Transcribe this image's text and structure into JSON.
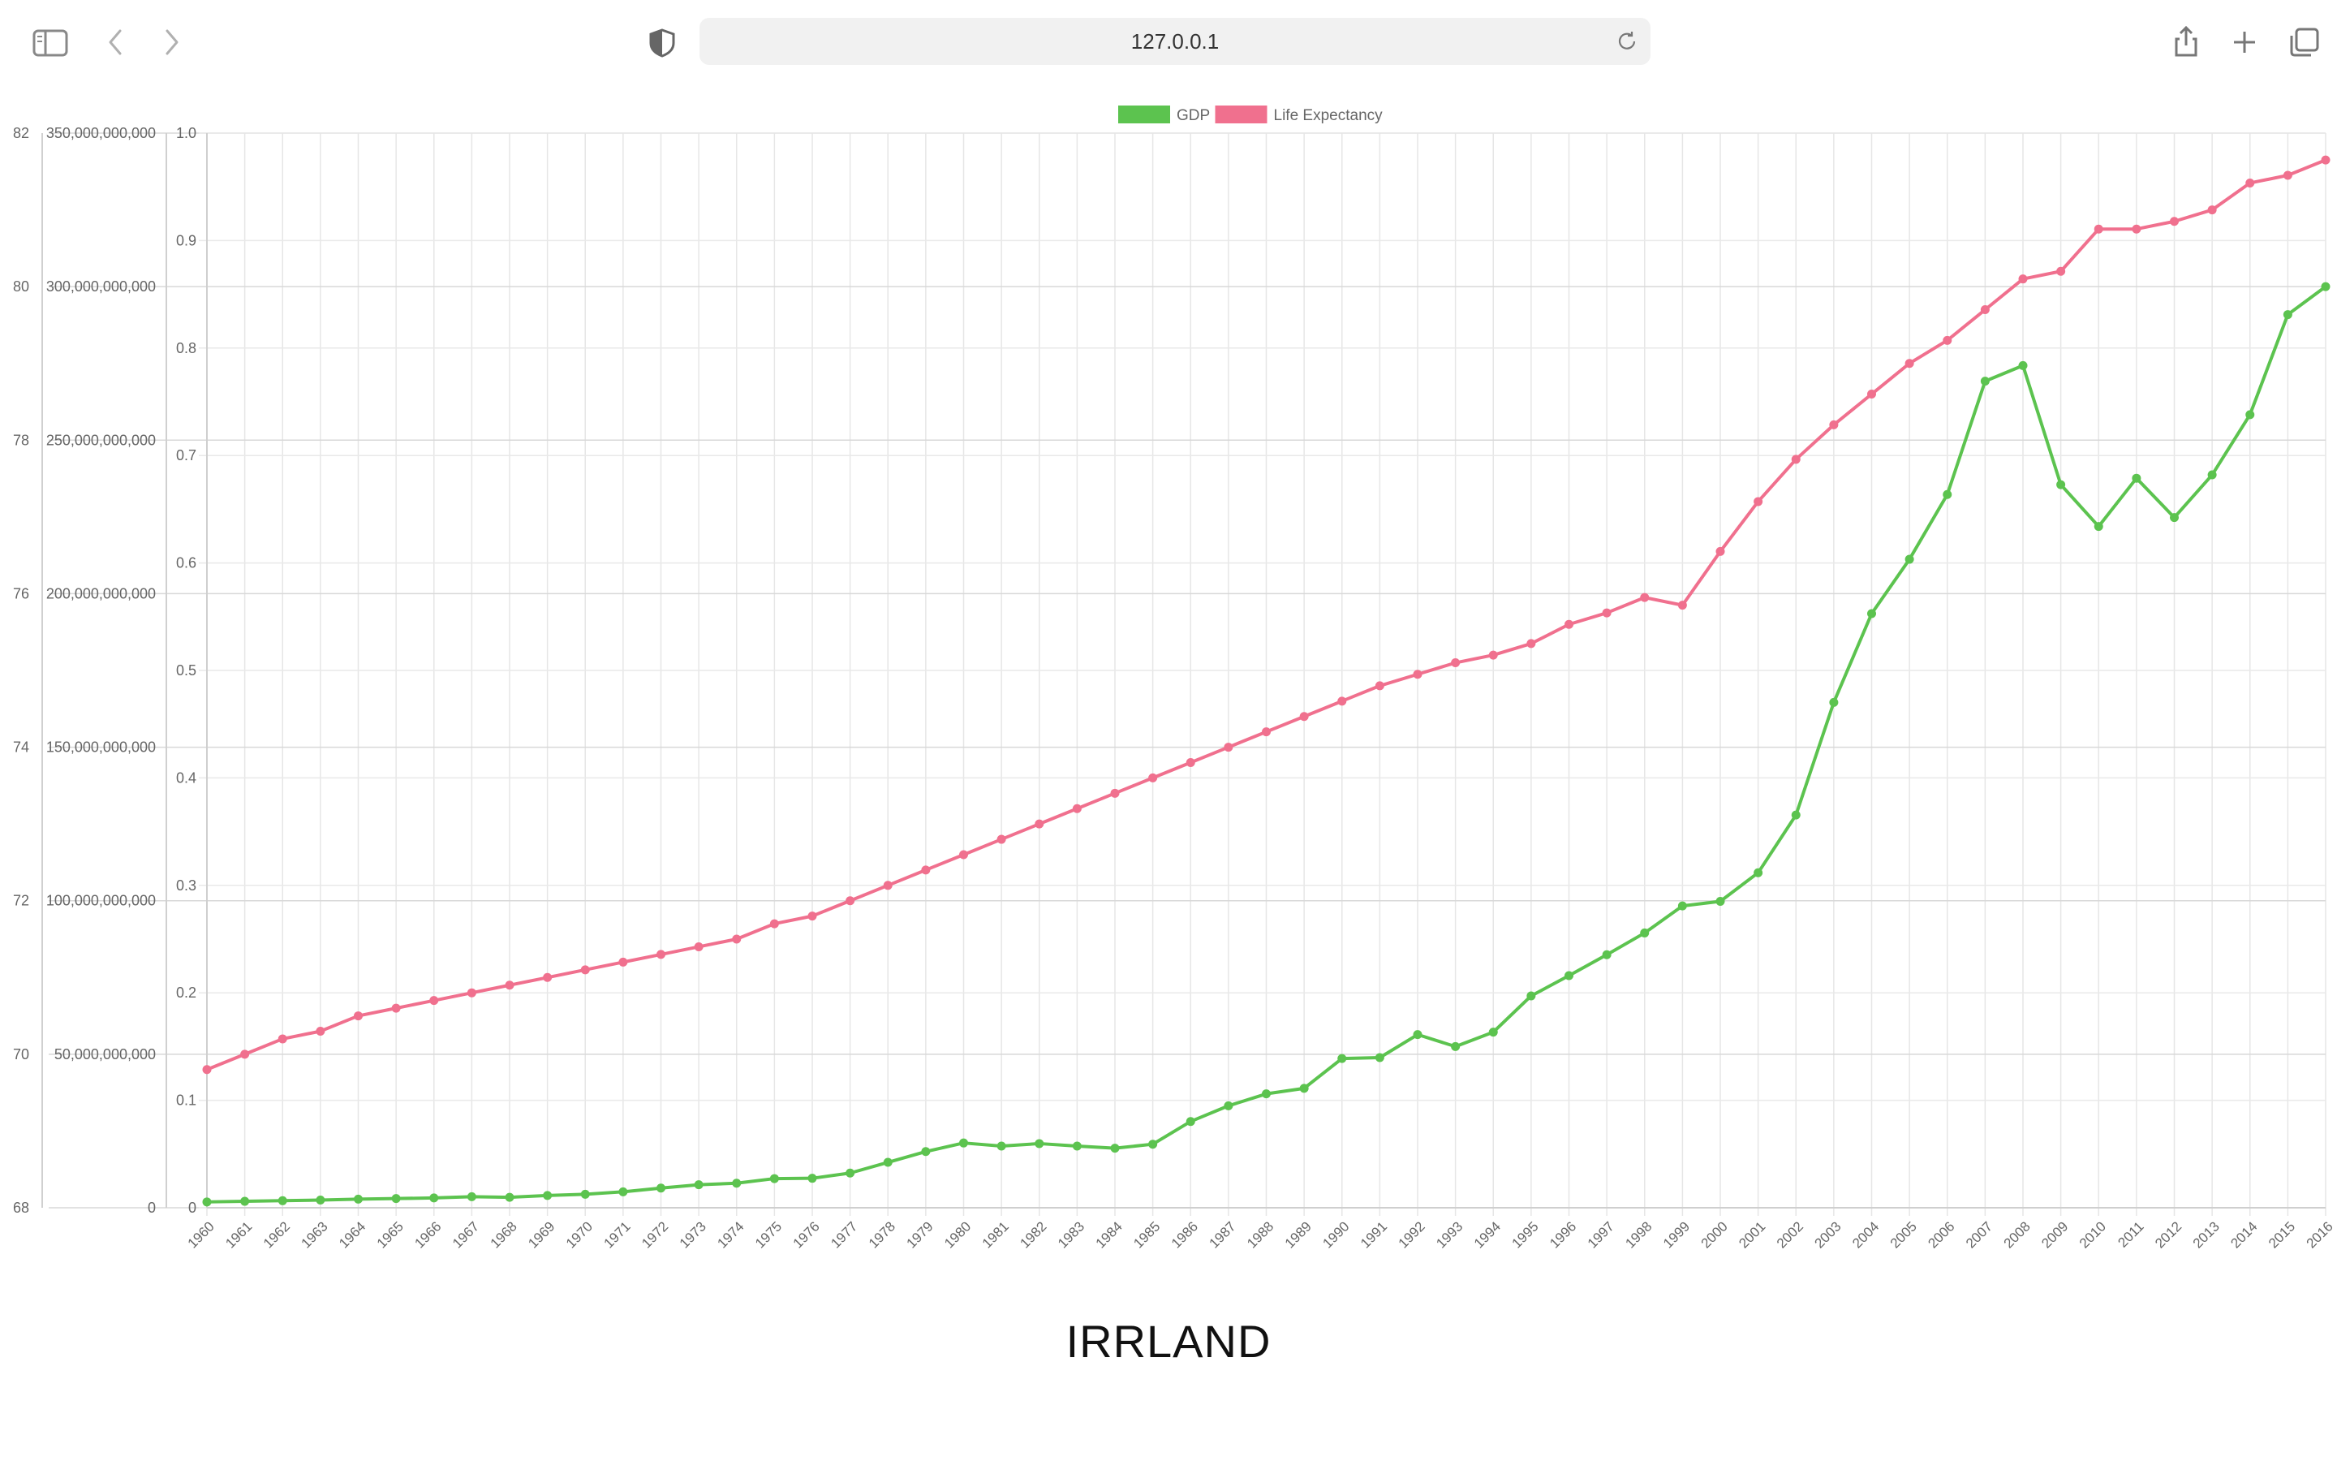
{
  "browser": {
    "address": "127.0.0.1",
    "icons": [
      "sidebar-icon",
      "back-icon",
      "forward-icon",
      "privacy-shield-icon",
      "reload-icon",
      "share-icon",
      "new-tab-icon",
      "tabs-overview-icon"
    ]
  },
  "page": {
    "title": "IRRLAND"
  },
  "chart_data": {
    "type": "line",
    "legend_position": "top",
    "grid": true,
    "title": "",
    "x": [
      1960,
      1961,
      1962,
      1963,
      1964,
      1965,
      1966,
      1967,
      1968,
      1969,
      1970,
      1971,
      1972,
      1973,
      1974,
      1975,
      1976,
      1977,
      1978,
      1979,
      1980,
      1981,
      1982,
      1983,
      1984,
      1985,
      1986,
      1987,
      1988,
      1989,
      1990,
      1991,
      1992,
      1993,
      1994,
      1995,
      1996,
      1997,
      1998,
      1999,
      2000,
      2001,
      2002,
      2003,
      2004,
      2005,
      2006,
      2007,
      2008,
      2009,
      2010,
      2011,
      2012,
      2013,
      2014,
      2015,
      2016
    ],
    "x_ticks": [
      "1960",
      "1961",
      "1962",
      "1963",
      "1964",
      "1965",
      "1966",
      "1967",
      "1968",
      "1969",
      "1970",
      "1971",
      "1972",
      "1973",
      "1974",
      "1975",
      "1976",
      "1977",
      "1978",
      "1979",
      "1980",
      "1981",
      "1982",
      "1983",
      "1984",
      "1985",
      "1986",
      "1987",
      "1988",
      "1989",
      "1990",
      "1991",
      "1992",
      "1993",
      "1994",
      "1995",
      "1996",
      "1997",
      "1998",
      "1999",
      "2000",
      "2001",
      "2002",
      "2003",
      "2004",
      "2005",
      "2006",
      "2007",
      "2008",
      "2009",
      "2010",
      "2011",
      "2012",
      "2013",
      "2014",
      "2015",
      "2016"
    ],
    "axes": {
      "life_expectancy": {
        "position": "left-outer",
        "range": [
          68,
          82
        ],
        "ticks": [
          "82",
          "80",
          "78",
          "76",
          "74",
          "72",
          "70",
          "68"
        ]
      },
      "gdp": {
        "position": "left-middle",
        "range": [
          0,
          350000000000
        ],
        "ticks": [
          "350,000,000,000",
          "300,000,000,000",
          "250,000,000,000",
          "200,000,000,000",
          "150,000,000,000",
          "100,000,000,000",
          "50,000,000,000",
          "0"
        ]
      },
      "fraction": {
        "position": "left-inner",
        "range": [
          0,
          1
        ],
        "ticks": [
          "1.0",
          "0.9",
          "0.8",
          "0.7",
          "0.6",
          "0.5",
          "0.4",
          "0.3",
          "0.2",
          "0.1",
          "0"
        ]
      }
    },
    "series": [
      {
        "name": "GDP",
        "color": "#5cc34f",
        "axis": "gdp",
        "values": [
          1900000000,
          2100000000,
          2300000000,
          2500000000,
          2800000000,
          3000000000,
          3200000000,
          3600000000,
          3400000000,
          4000000000,
          4400000000,
          5200000000,
          6400000000,
          7500000000,
          8000000000,
          9500000000,
          9600000000,
          11300000000,
          14800000000,
          18300000000,
          21100000000,
          20100000000,
          20900000000,
          20100000000,
          19400000000,
          20700000000,
          28100000000,
          33200000000,
          37100000000,
          38900000000,
          48600000000,
          48900000000,
          56400000000,
          52500000000,
          57200000000,
          69000000000,
          75600000000,
          82400000000,
          89500000000,
          98300000000,
          99800000000,
          109100000000,
          127900000000,
          164600000000,
          193500000000,
          211200000000,
          232300000000,
          269200000000,
          274300000000,
          235500000000,
          221900000000,
          237600000000,
          224800000000,
          238700000000,
          258300000000,
          290900000000,
          300000000000
        ]
      },
      {
        "name": "Life Expectancy",
        "color": "#f0708e",
        "axis": "life_expectancy",
        "values": [
          69.8,
          70.0,
          70.2,
          70.3,
          70.5,
          70.6,
          70.7,
          70.8,
          70.9,
          71.0,
          71.1,
          71.2,
          71.3,
          71.4,
          71.5,
          71.7,
          71.8,
          72.0,
          72.2,
          72.4,
          72.6,
          72.8,
          73.0,
          73.2,
          73.4,
          73.6,
          73.8,
          74.0,
          74.2,
          74.4,
          74.6,
          74.8,
          74.95,
          75.1,
          75.2,
          75.35,
          75.6,
          75.75,
          75.95,
          75.85,
          76.55,
          77.2,
          77.75,
          78.2,
          78.6,
          79.0,
          79.3,
          79.7,
          80.1,
          80.2,
          80.75,
          80.75,
          80.85,
          81.0,
          81.35,
          81.45,
          81.65
        ]
      }
    ]
  }
}
